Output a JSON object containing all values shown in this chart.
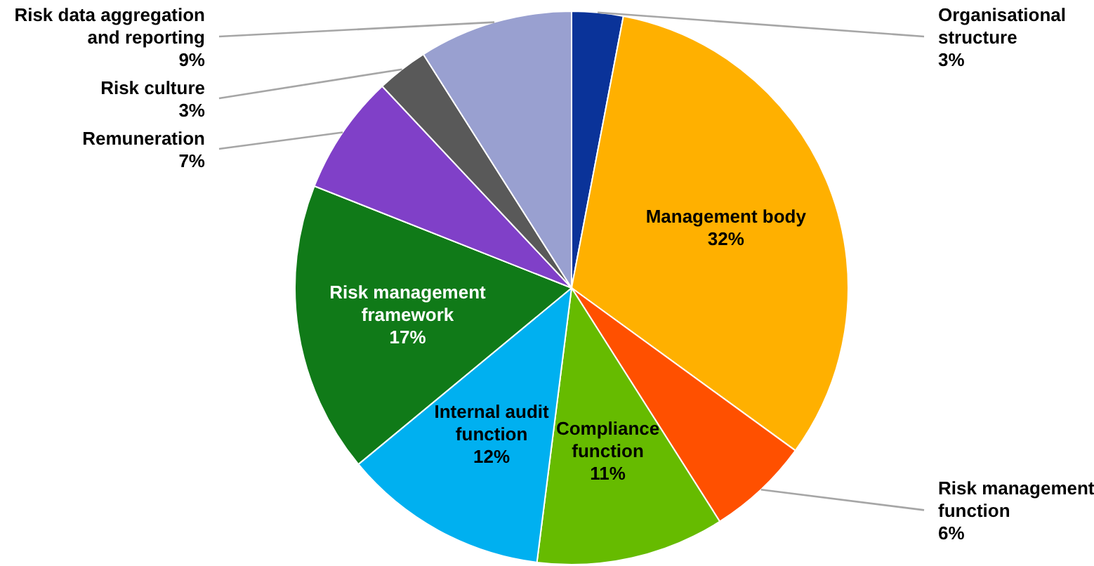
{
  "chart_data": {
    "type": "pie",
    "categories": [
      "Organisational structure",
      "Management body",
      "Risk management function",
      "Compliance function",
      "Internal audit function",
      "Risk management framework",
      "Remuneration",
      "Risk culture",
      "Risk data aggregation and reporting"
    ],
    "values": [
      3,
      32,
      6,
      11,
      12,
      17,
      7,
      3,
      9
    ],
    "value_labels": [
      "3%",
      "32%",
      "6%",
      "11%",
      "12%",
      "17%",
      "7%",
      "3%",
      "9%"
    ],
    "colors": [
      "#0a3399",
      "#ffb000",
      "#ff5000",
      "#66bb00",
      "#00b0f0",
      "#107a18",
      "#8040c8",
      "#595959",
      "#99a0d0"
    ],
    "legend": false
  }
}
